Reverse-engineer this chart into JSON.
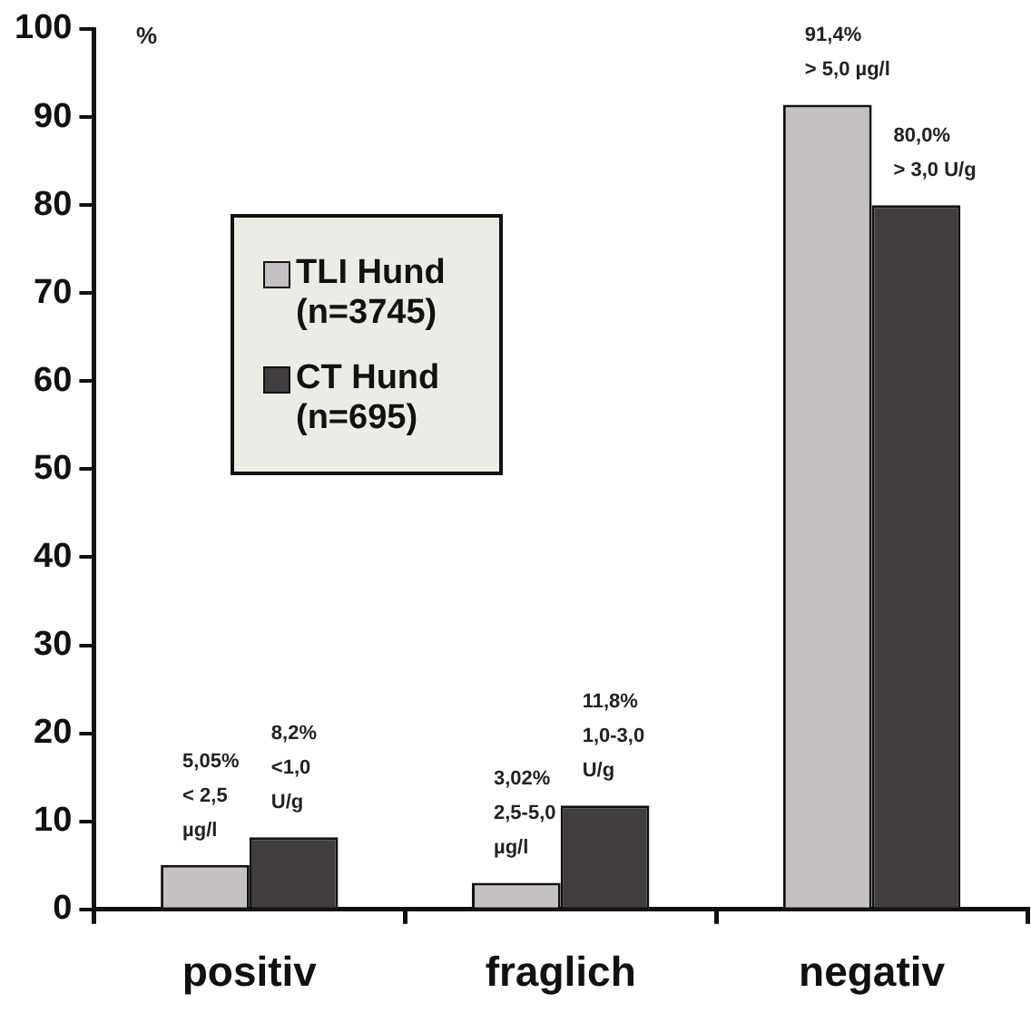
{
  "chart_data": {
    "type": "bar",
    "ylabel": "%",
    "categories": [
      "positiv",
      "fraglich",
      "negativ"
    ],
    "series": [
      {
        "name": "TLI Hund (n=3745)",
        "color": "#c4c0c4",
        "values": [
          5.05,
          3.02,
          91.4
        ],
        "value_labels": [
          "5,05%\n< 2,5\nµg/l",
          "3,02%\n2,5-5,0\nµg/l",
          "91,4%\n> 5,0 µg/l"
        ]
      },
      {
        "name": "CT Hund (n=695)",
        "color": "#403c40",
        "values": [
          8.2,
          11.8,
          80.0
        ],
        "value_labels": [
          "8,2%\n<1,0\nU/g",
          "11,8%\n1,0-3,0\nU/g",
          "80,0%\n> 3,0 U/g"
        ]
      }
    ],
    "ylim": [
      0,
      100
    ],
    "yticks": [
      0,
      10,
      20,
      30,
      40,
      50,
      60,
      70,
      80,
      90,
      100
    ],
    "grid": false,
    "legend": "top left"
  }
}
